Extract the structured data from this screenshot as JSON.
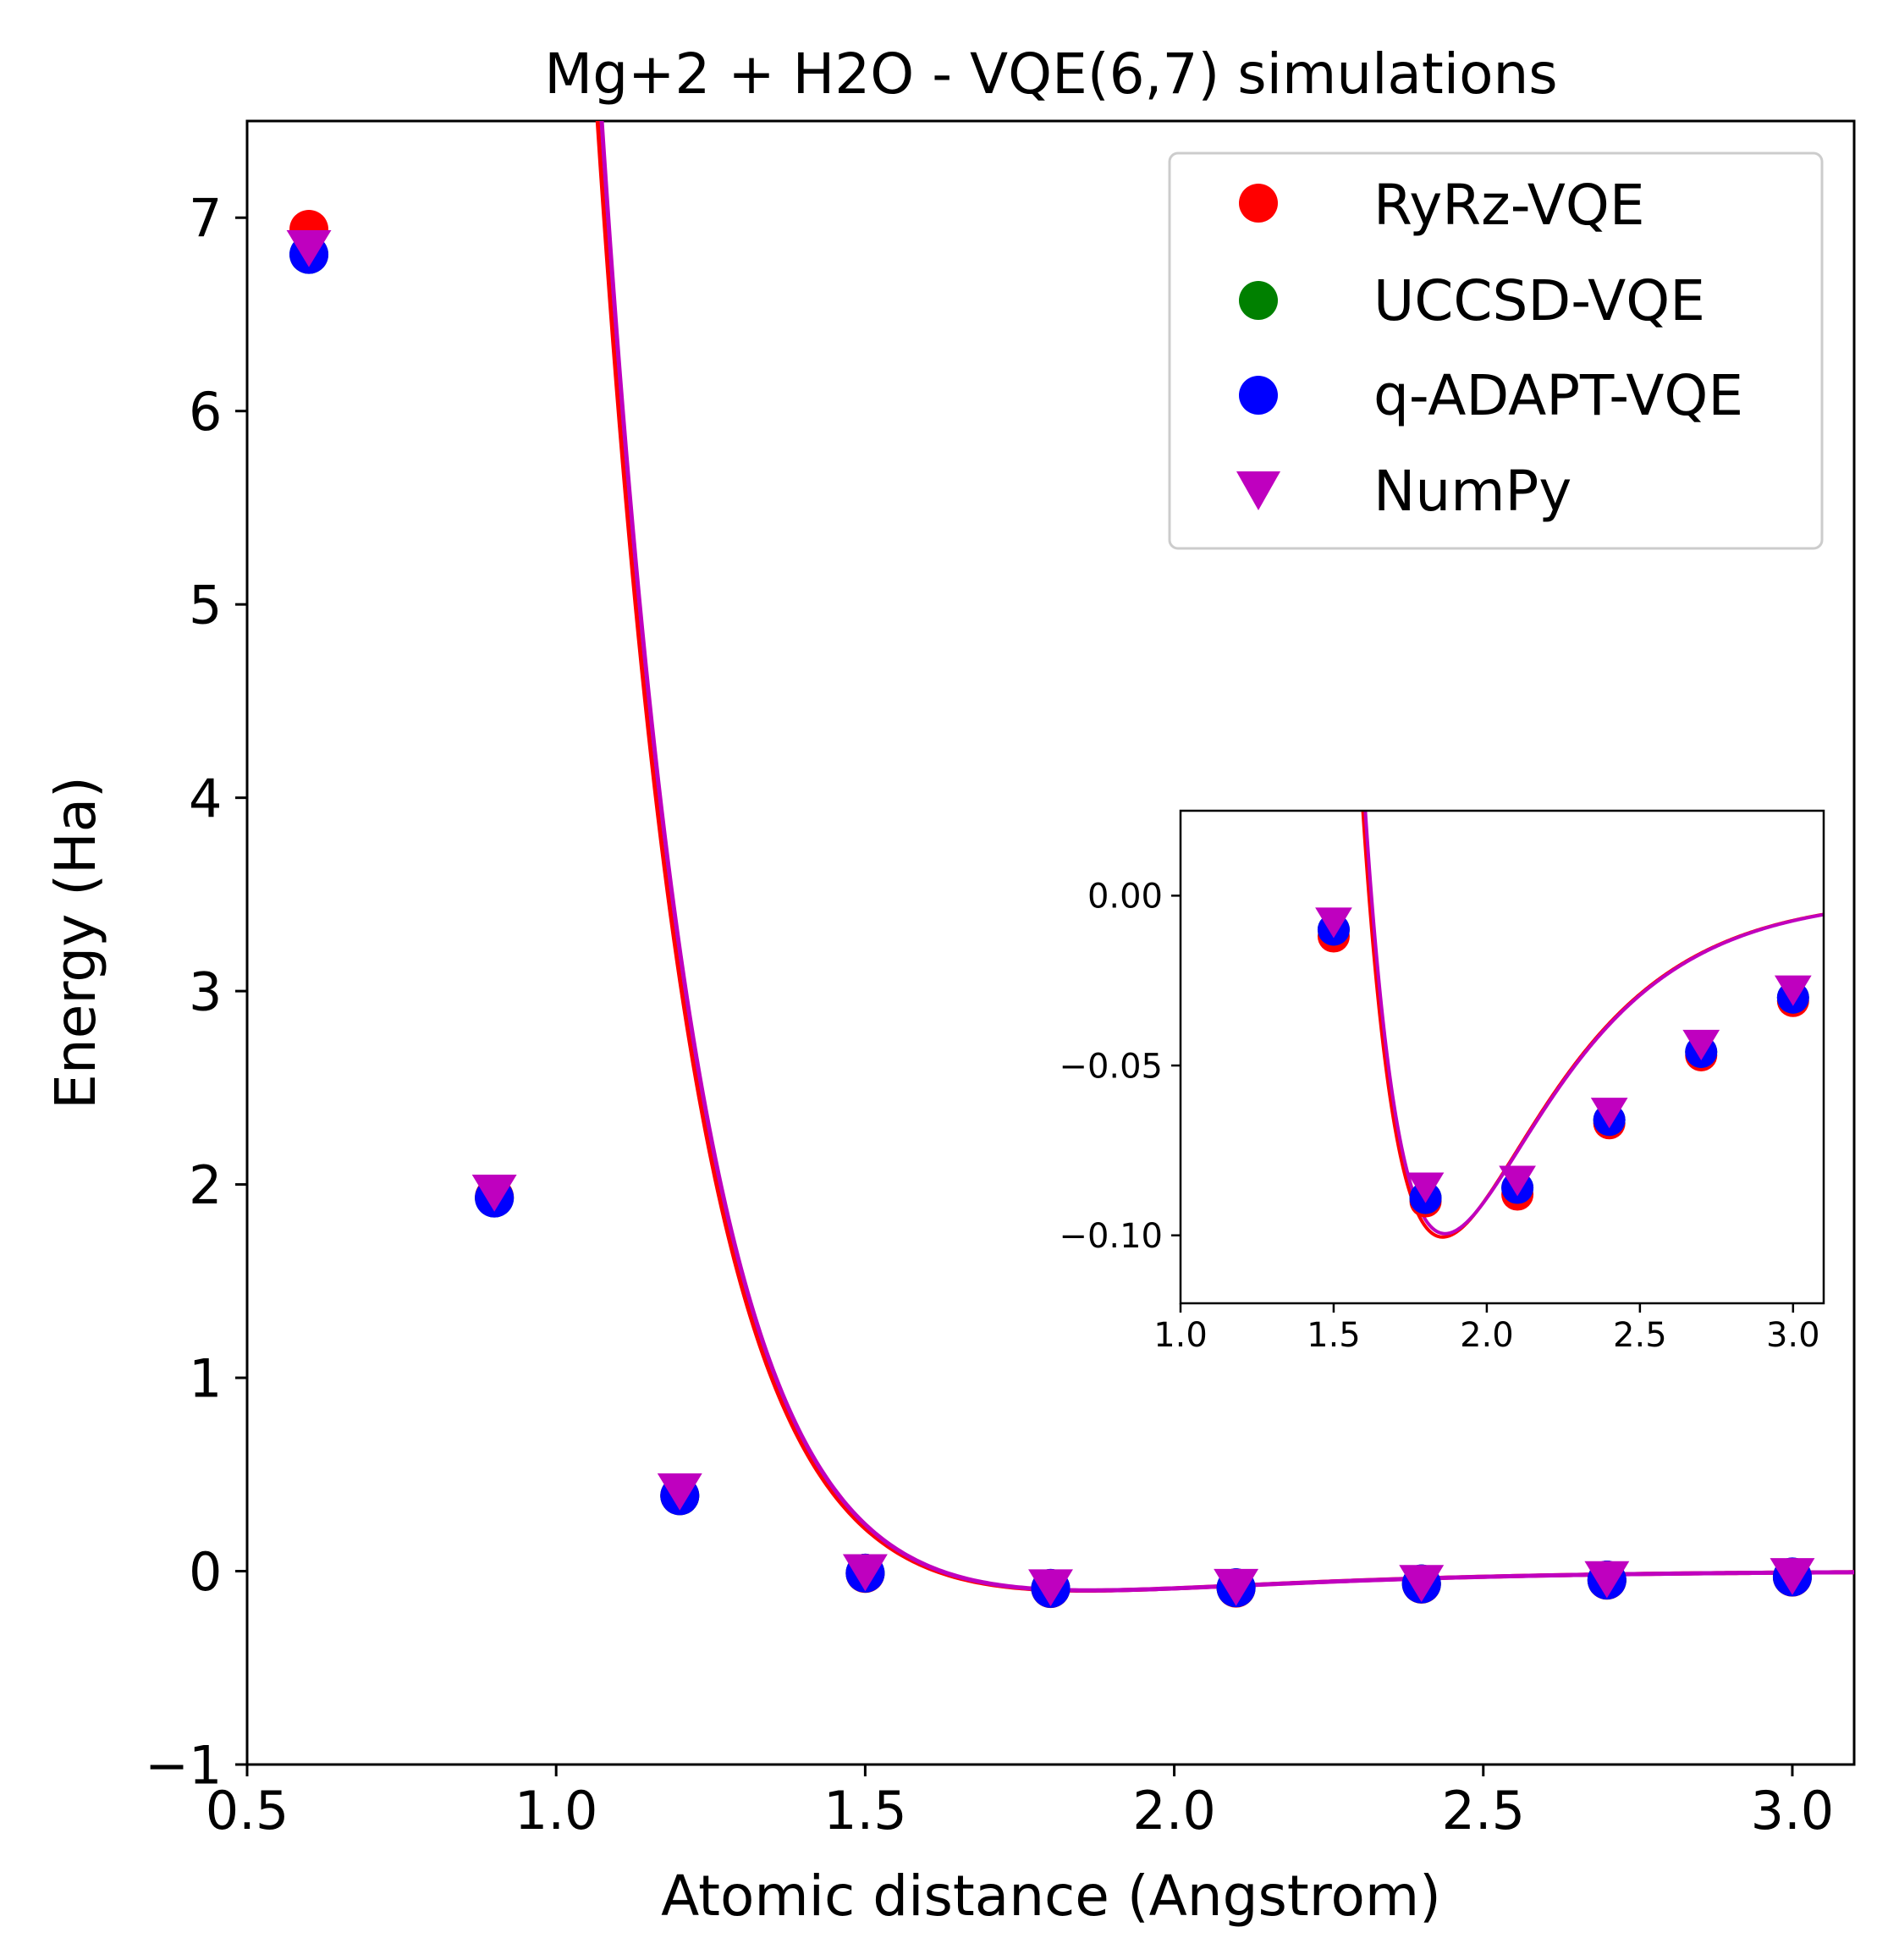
{
  "colors": {
    "ryrz": "#ff0000",
    "uccsd": "#008000",
    "adapt": "#0000ff",
    "numpy": "#bf00bf",
    "axis": "#000000",
    "legend_border": "#cccccc"
  },
  "chart_data": [
    {
      "id": "main",
      "type": "line",
      "title": "Mg+2 + H2O - VQE(6,7) simulations",
      "xlabel": "Atomic distance (Angstrom)",
      "ylabel": "Energy (Ha)",
      "xlim": [
        0.5,
        3.1
      ],
      "ylim": [
        -1.0,
        7.5
      ],
      "xticks": [
        0.5,
        1.0,
        1.5,
        2.0,
        2.5,
        3.0
      ],
      "xtick_labels": [
        "0.5",
        "1.0",
        "1.5",
        "2.0",
        "2.5",
        "3.0"
      ],
      "yticks": [
        -1,
        0,
        1,
        2,
        3,
        4,
        5,
        6,
        7
      ],
      "ytick_labels": [
        "−1",
        "0",
        "1",
        "2",
        "3",
        "4",
        "5",
        "6",
        "7"
      ],
      "grid": false,
      "legend_position": "top-right",
      "x": [
        0.6,
        0.9,
        1.2,
        1.5,
        1.8,
        2.1,
        2.4,
        2.7,
        3.0
      ],
      "series": [
        {
          "name": "RyRz-VQE",
          "marker": "circle",
          "color_key": "ryrz",
          "values": [
            6.94,
            1.935,
            0.39,
            -0.012,
            -0.09,
            -0.088,
            -0.067,
            -0.047,
            -0.031
          ]
        },
        {
          "name": "UCCSD-VQE",
          "marker": "circle",
          "color_key": "uccsd",
          "values": [
            6.81,
            1.93,
            0.39,
            -0.01,
            -0.089,
            -0.086,
            -0.066,
            -0.046,
            -0.03
          ]
        },
        {
          "name": "q-ADAPT-VQE",
          "marker": "circle",
          "color_key": "adapt",
          "values": [
            6.81,
            1.93,
            0.39,
            -0.01,
            -0.089,
            -0.086,
            -0.066,
            -0.046,
            -0.03
          ]
        },
        {
          "name": "NumPy",
          "marker": "triangle-down",
          "color_key": "numpy",
          "values": [
            6.84,
            1.955,
            0.41,
            -0.008,
            -0.086,
            -0.084,
            -0.064,
            -0.044,
            -0.028
          ]
        }
      ],
      "curves": [
        {
          "name": "RyRz-VQE fit",
          "color_key": "ryrz"
        },
        {
          "name": "NumPy fit",
          "color_key": "numpy"
        }
      ],
      "curve_model": {
        "De": 0.1,
        "re": 1.86,
        "a": 2.88
      }
    },
    {
      "id": "inset",
      "type": "line",
      "title": "",
      "xlabel": "",
      "ylabel": "",
      "xlim": [
        1.0,
        3.1
      ],
      "ylim": [
        -0.12,
        0.025
      ],
      "xticks": [
        1.0,
        1.5,
        2.0,
        2.5,
        3.0
      ],
      "xtick_labels": [
        "1.0",
        "1.5",
        "2.0",
        "2.5",
        "3.0"
      ],
      "yticks": [
        0.0,
        -0.05,
        -0.1
      ],
      "ytick_labels": [
        "0.00",
        "−0.05",
        "−0.10"
      ],
      "grid": false
    }
  ]
}
